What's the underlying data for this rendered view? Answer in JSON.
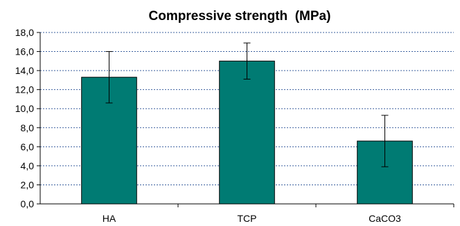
{
  "chart_data": {
    "type": "bar",
    "title": "Compressive strength  (MPa)",
    "xlabel": "",
    "ylabel": "",
    "categories": [
      "HA",
      "TCP",
      "CaCO3"
    ],
    "values": [
      13.3,
      15.0,
      6.6
    ],
    "error": [
      2.7,
      1.9,
      2.7
    ],
    "ylim": [
      0,
      18
    ],
    "yticks": [
      "0,0",
      "2,0",
      "4,0",
      "6,0",
      "8,0",
      "10,0",
      "12,0",
      "14,0",
      "16,0",
      "18,0"
    ],
    "grid": true,
    "legend": "none",
    "bar_color": "#007b73",
    "grid_color": "#3a5f9e"
  }
}
